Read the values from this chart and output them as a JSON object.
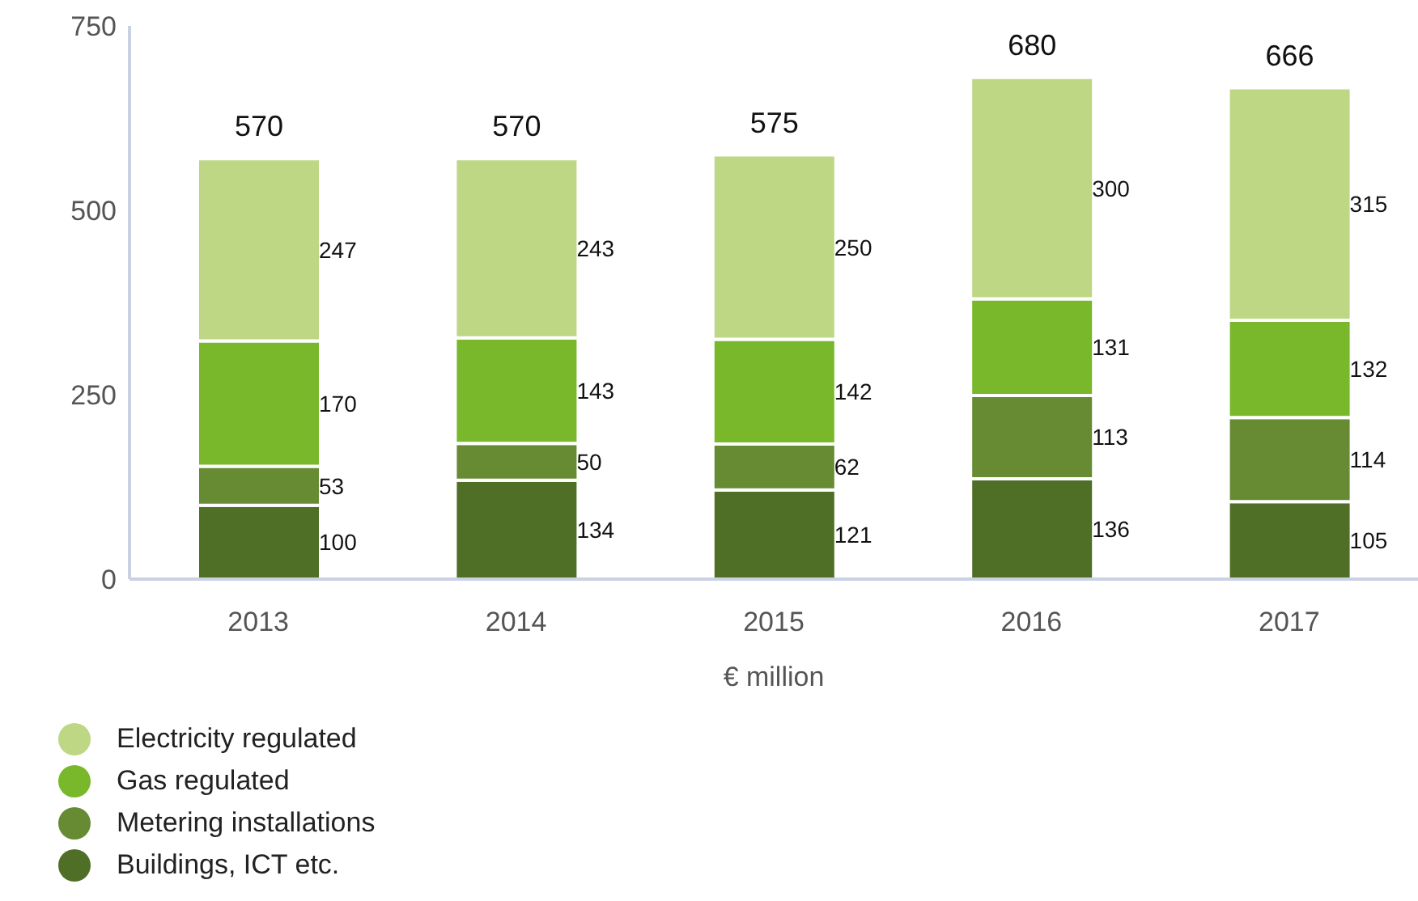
{
  "chart_data": {
    "type": "bar",
    "xlabel": "€ million",
    "categories": [
      "2013",
      "2014",
      "2015",
      "2016",
      "2017"
    ],
    "stacked": true,
    "data_labels": true,
    "totals": [
      "570",
      "570",
      "575",
      "680",
      "666"
    ],
    "ylim": [
      0,
      750
    ],
    "yticks": [
      0,
      250,
      500,
      750
    ],
    "grid": false,
    "legend": "bottom left",
    "series": [
      {
        "name": "Buildings, ICT etc.",
        "color": "#4f6f27",
        "values": [
          100,
          134,
          121,
          136,
          105
        ]
      },
      {
        "name": "Metering installations",
        "color": "#678b33",
        "values": [
          53,
          50,
          62,
          113,
          114
        ]
      },
      {
        "name": "Gas regulated",
        "color": "#78b82a",
        "values": [
          170,
          143,
          142,
          131,
          132
        ]
      },
      {
        "name": "Electricity regulated",
        "color": "#bdd785",
        "values": [
          247,
          243,
          250,
          300,
          315
        ]
      }
    ]
  }
}
